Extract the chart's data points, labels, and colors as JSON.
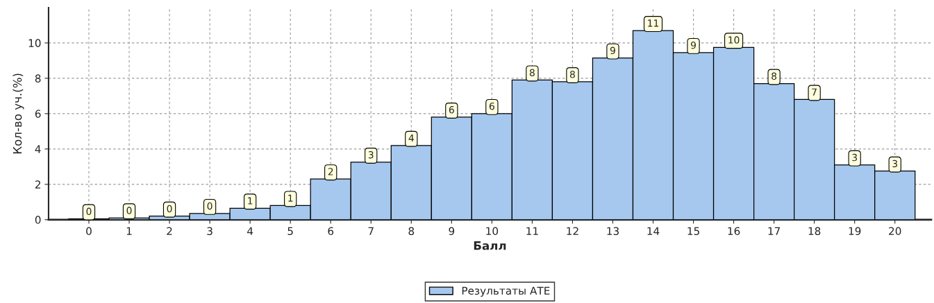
{
  "chart_data": {
    "type": "bar",
    "xlabel": "Балл",
    "ylabel": "Кол-во уч.(%)",
    "categories": [
      "0",
      "1",
      "2",
      "3",
      "4",
      "5",
      "6",
      "7",
      "8",
      "9",
      "10",
      "11",
      "12",
      "13",
      "14",
      "15",
      "16",
      "17",
      "18",
      "19",
      "20"
    ],
    "series": [
      {
        "name": "Результаты АТЕ",
        "color": "#a6c8ee",
        "values": [
          0.05,
          0.1,
          0.2,
          0.35,
          0.65,
          0.8,
          2.3,
          3.25,
          4.2,
          5.8,
          6.0,
          7.9,
          7.8,
          9.15,
          10.7,
          9.45,
          9.75,
          7.7,
          6.8,
          3.1,
          2.75
        ],
        "value_labels": [
          "0",
          "0",
          "0",
          "0",
          "1",
          "1",
          "2",
          "3",
          "4",
          "6",
          "6",
          "8",
          "8",
          "9",
          "11",
          "9",
          "10",
          "8",
          "7",
          "3",
          "3"
        ]
      }
    ],
    "ylim": [
      0,
      12
    ],
    "yticks": [
      0,
      2,
      4,
      6,
      8,
      10
    ],
    "grid": true,
    "legend": "bottom"
  }
}
